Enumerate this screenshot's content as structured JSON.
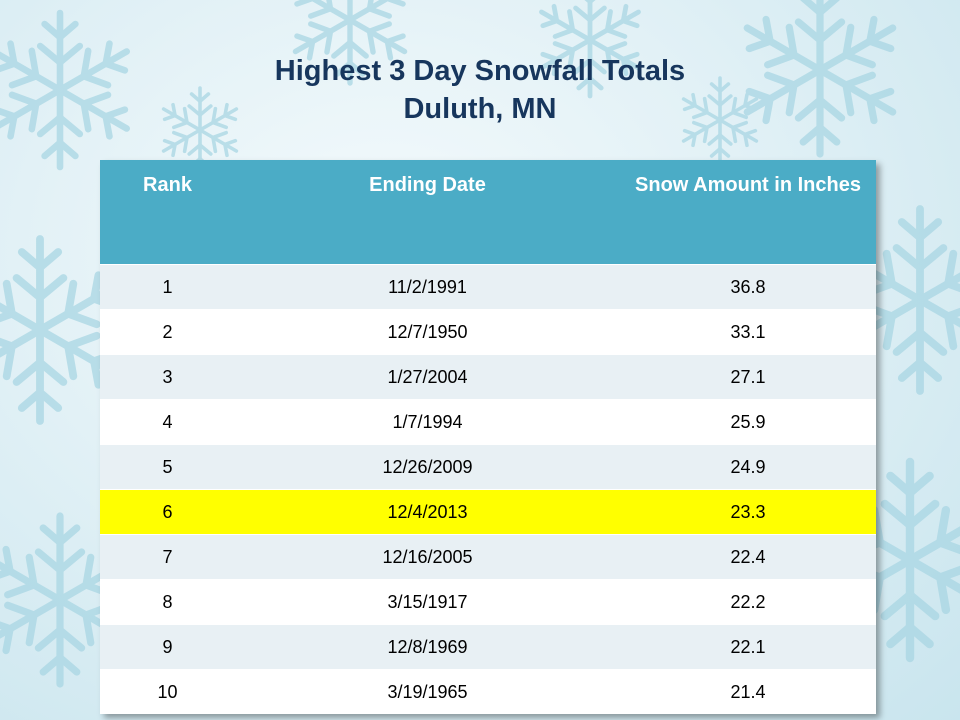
{
  "title": {
    "line1": "Highest 3 Day Snowfall Totals",
    "line2": "Duluth, MN"
  },
  "table": {
    "headers": [
      "Rank",
      "Ending Date",
      "Snow Amount in Inches"
    ],
    "rows": [
      {
        "rank": "1",
        "date": "11/2/1991",
        "amount": "36.8"
      },
      {
        "rank": "2",
        "date": "12/7/1950",
        "amount": "33.1"
      },
      {
        "rank": "3",
        "date": "1/27/2004",
        "amount": "27.1"
      },
      {
        "rank": "4",
        "date": "1/7/1994",
        "amount": "25.9"
      },
      {
        "rank": "5",
        "date": "12/26/2009",
        "amount": "24.9"
      },
      {
        "rank": "6",
        "date": "12/4/2013",
        "amount": "23.3",
        "highlight": true
      },
      {
        "rank": "7",
        "date": "12/16/2005",
        "amount": "22.4"
      },
      {
        "rank": "8",
        "date": "3/15/1917",
        "amount": "22.2"
      },
      {
        "rank": "9",
        "date": "12/8/1969",
        "amount": "22.1"
      },
      {
        "rank": "10",
        "date": "3/19/1965",
        "amount": "21.4"
      }
    ]
  },
  "colors": {
    "title": "#17365d",
    "header_bg": "#4bacc6",
    "highlight": "#ffff00",
    "row_band": "#e8f0f4"
  },
  "background": {
    "icon": "snowflake-icon"
  }
}
